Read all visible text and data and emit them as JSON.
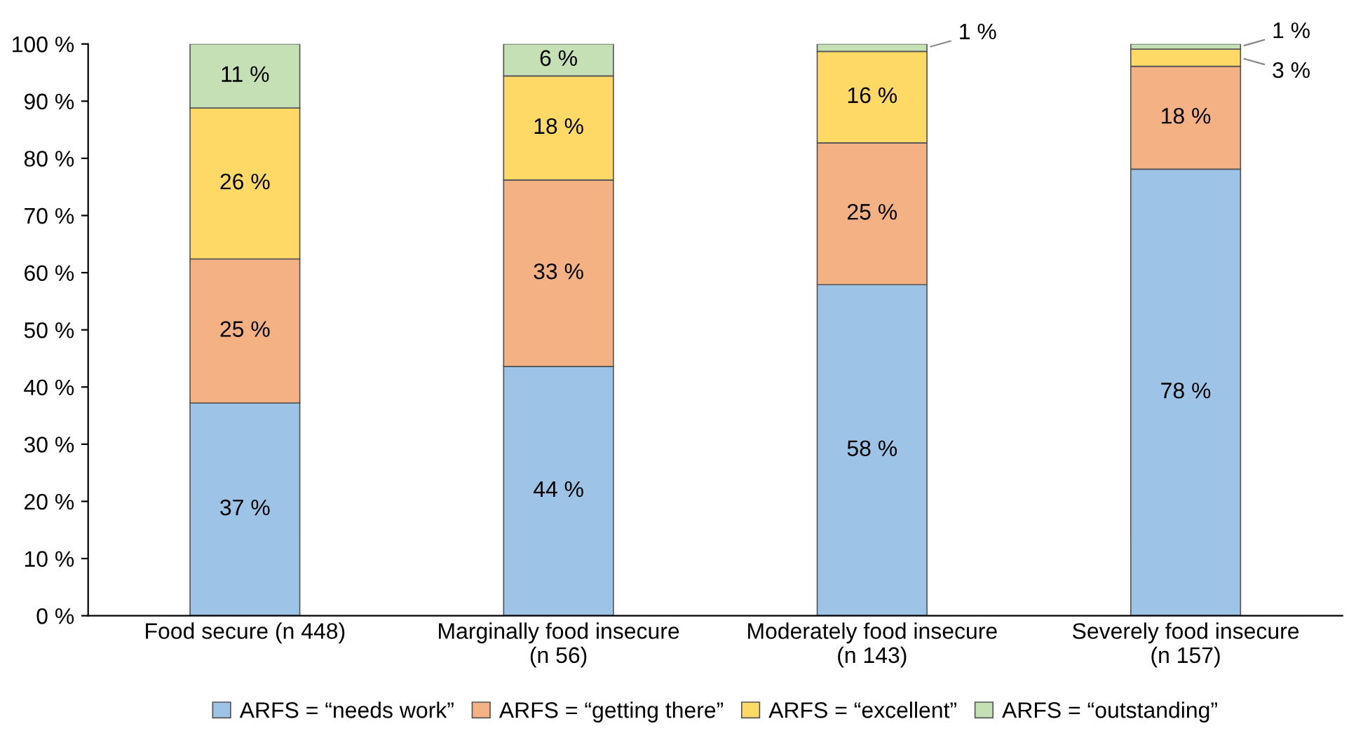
{
  "chart_data": {
    "type": "bar",
    "stacked": true,
    "categories": [
      "Food secure (n 448)",
      "Marginally food insecure\n(n 56)",
      "Moderately food insecure\n(n 143)",
      "Severely food insecure\n(n 157)"
    ],
    "series": [
      {
        "name": "ARFS = “needs work”",
        "color": "#9dc3e6",
        "values": [
          37.2,
          43.6,
          57.9,
          78.1
        ],
        "value_labels": [
          "37 %",
          "44 %",
          "58 %",
          "78 %"
        ]
      },
      {
        "name": "ARFS = “getting there”",
        "color": "#f4b183",
        "values": [
          25.2,
          32.6,
          24.8,
          18.0
        ],
        "value_labels": [
          "25 %",
          "33 %",
          "25 %",
          "18 %"
        ]
      },
      {
        "name": "ARFS = “excellent”",
        "color": "#ffd966",
        "values": [
          26.4,
          18.2,
          16.0,
          3.0
        ],
        "value_labels": [
          "26 %",
          "18 %",
          "16 %",
          "3 %"
        ]
      },
      {
        "name": "ARFS = “outstanding”",
        "color": "#c5e0b4",
        "values": [
          11.2,
          5.6,
          1.3,
          0.9
        ],
        "value_labels": [
          "11 %",
          "6 %",
          "1 %",
          "1 %"
        ]
      }
    ],
    "ylim": [
      0,
      100
    ],
    "yticks": [
      {
        "value": 0,
        "label": "0 %"
      },
      {
        "value": 10,
        "label": "10 %"
      },
      {
        "value": 20,
        "label": "20 %"
      },
      {
        "value": 30,
        "label": "30 %"
      },
      {
        "value": 40,
        "label": "40 %"
      },
      {
        "value": 50,
        "label": "50 %"
      },
      {
        "value": 60,
        "label": "60 %"
      },
      {
        "value": 70,
        "label": "70 %"
      },
      {
        "value": 80,
        "label": "80 %"
      },
      {
        "value": 90,
        "label": "90 %"
      },
      {
        "value": 100,
        "label": "100 %"
      }
    ],
    "grid": false,
    "legend": "bottom"
  }
}
